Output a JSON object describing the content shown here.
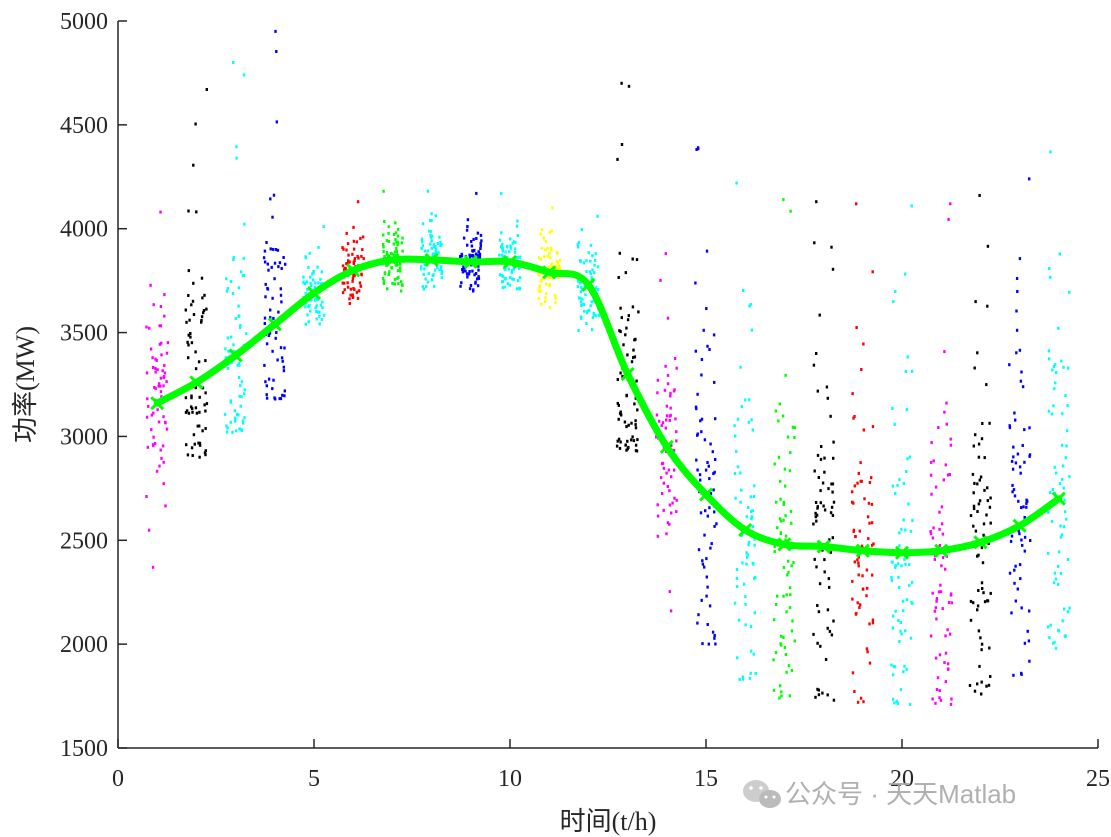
{
  "chart_data": {
    "type": "scatter",
    "title": "",
    "xlabel": "时间(t/h)",
    "ylabel": "功率(MW)",
    "xlim": [
      0,
      25
    ],
    "ylim": [
      1500,
      5000
    ],
    "xticks": [
      0,
      5,
      10,
      15,
      20,
      25
    ],
    "yticks": [
      1500,
      2000,
      2500,
      3000,
      3500,
      4000,
      4500,
      5000
    ],
    "grid": false,
    "legend": "none",
    "hours": [
      1,
      2,
      3,
      4,
      5,
      6,
      7,
      8,
      9,
      10,
      11,
      12,
      13,
      14,
      15,
      16,
      17,
      18,
      19,
      20,
      21,
      22,
      23,
      24
    ],
    "cluster_colors": [
      "#ff00ff",
      "#000000",
      "#00ffff",
      "#0000ff",
      "#00ffff",
      "#ff0000",
      "#00ff00",
      "#00ffff",
      "#0000ff",
      "#00ffff",
      "#ffff00",
      "#00ffff",
      "#000000",
      "#ff00ff",
      "#0000ff",
      "#00ffff",
      "#00ff00",
      "#000000",
      "#ff0000",
      "#00ffff",
      "#ff00ff",
      "#000000",
      "#0000ff",
      "#00ffff"
    ],
    "scatter_ranges": [
      {
        "min": 2370,
        "max": 4080
      },
      {
        "min": 2900,
        "max": 4670
      },
      {
        "min": 3020,
        "max": 4800
      },
      {
        "min": 3180,
        "max": 4950
      },
      {
        "min": 3540,
        "max": 4010
      },
      {
        "min": 3640,
        "max": 4130
      },
      {
        "min": 3700,
        "max": 4180
      },
      {
        "min": 3710,
        "max": 4180
      },
      {
        "min": 3700,
        "max": 4170
      },
      {
        "min": 3710,
        "max": 4170
      },
      {
        "min": 3620,
        "max": 4100
      },
      {
        "min": 3510,
        "max": 4060
      },
      {
        "min": 2930,
        "max": 4700
      },
      {
        "min": 2160,
        "max": 3880
      },
      {
        "min": 2000,
        "max": 4390
      },
      {
        "min": 1830,
        "max": 4220
      },
      {
        "min": 1740,
        "max": 4140
      },
      {
        "min": 1730,
        "max": 4130
      },
      {
        "min": 1720,
        "max": 4120
      },
      {
        "min": 1710,
        "max": 4110
      },
      {
        "min": 1710,
        "max": 4120
      },
      {
        "min": 1760,
        "max": 4160
      },
      {
        "min": 1850,
        "max": 4240
      },
      {
        "min": 1980,
        "max": 4370
      }
    ],
    "series": [
      {
        "type": "line",
        "color": "#00ff00",
        "x": [
          1,
          2,
          3,
          4,
          5,
          6,
          7,
          8,
          9,
          10,
          11,
          12,
          13,
          14,
          15,
          16,
          17,
          18,
          19,
          20,
          21,
          22,
          23,
          24
        ],
        "values": [
          3160,
          3260,
          3390,
          3540,
          3690,
          3800,
          3850,
          3850,
          3840,
          3840,
          3790,
          3730,
          3300,
          2950,
          2720,
          2550,
          2480,
          2470,
          2450,
          2440,
          2450,
          2490,
          2570,
          2700
        ]
      }
    ]
  },
  "watermark": {
    "text": "公众号 · 天天Matlab",
    "icon": "wechat-icon"
  }
}
